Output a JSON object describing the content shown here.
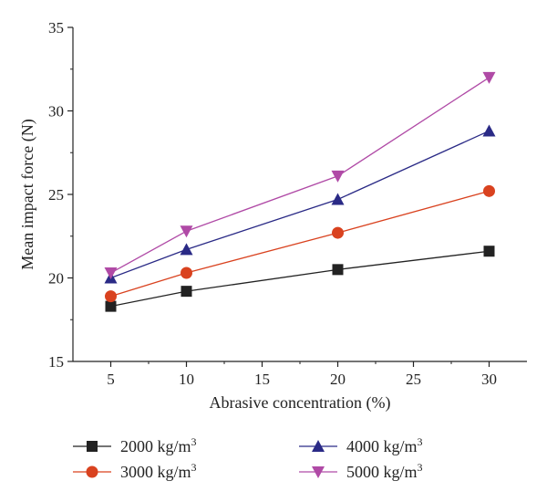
{
  "chart_data": {
    "type": "line",
    "xlabel": "Abrasive concentration (%)",
    "ylabel": "Mean impact force (N)",
    "xlim": [
      2.5,
      32.5
    ],
    "ylim": [
      15,
      35
    ],
    "x_ticks": [
      5,
      10,
      15,
      20,
      25,
      30
    ],
    "y_ticks": [
      15,
      20,
      25,
      30,
      35
    ],
    "grid": false,
    "legend_position": "bottom",
    "x": [
      5,
      10,
      20,
      30
    ],
    "series": [
      {
        "name": "2000 kg/m",
        "sup": "3",
        "marker": "square",
        "color": "#222222",
        "values": [
          18.3,
          19.2,
          20.5,
          21.6
        ]
      },
      {
        "name": "3000 kg/m",
        "sup": "3",
        "marker": "circle",
        "color": "#d9421f",
        "values": [
          18.9,
          20.3,
          22.7,
          25.2
        ]
      },
      {
        "name": "4000 kg/m",
        "sup": "3",
        "marker": "triangle-up",
        "color": "#2a2a86",
        "values": [
          20.0,
          21.7,
          24.7,
          28.8
        ]
      },
      {
        "name": "5000 kg/m",
        "sup": "3",
        "marker": "triangle-down",
        "color": "#b04aa6",
        "values": [
          20.3,
          22.8,
          26.1,
          32.0
        ]
      }
    ]
  }
}
